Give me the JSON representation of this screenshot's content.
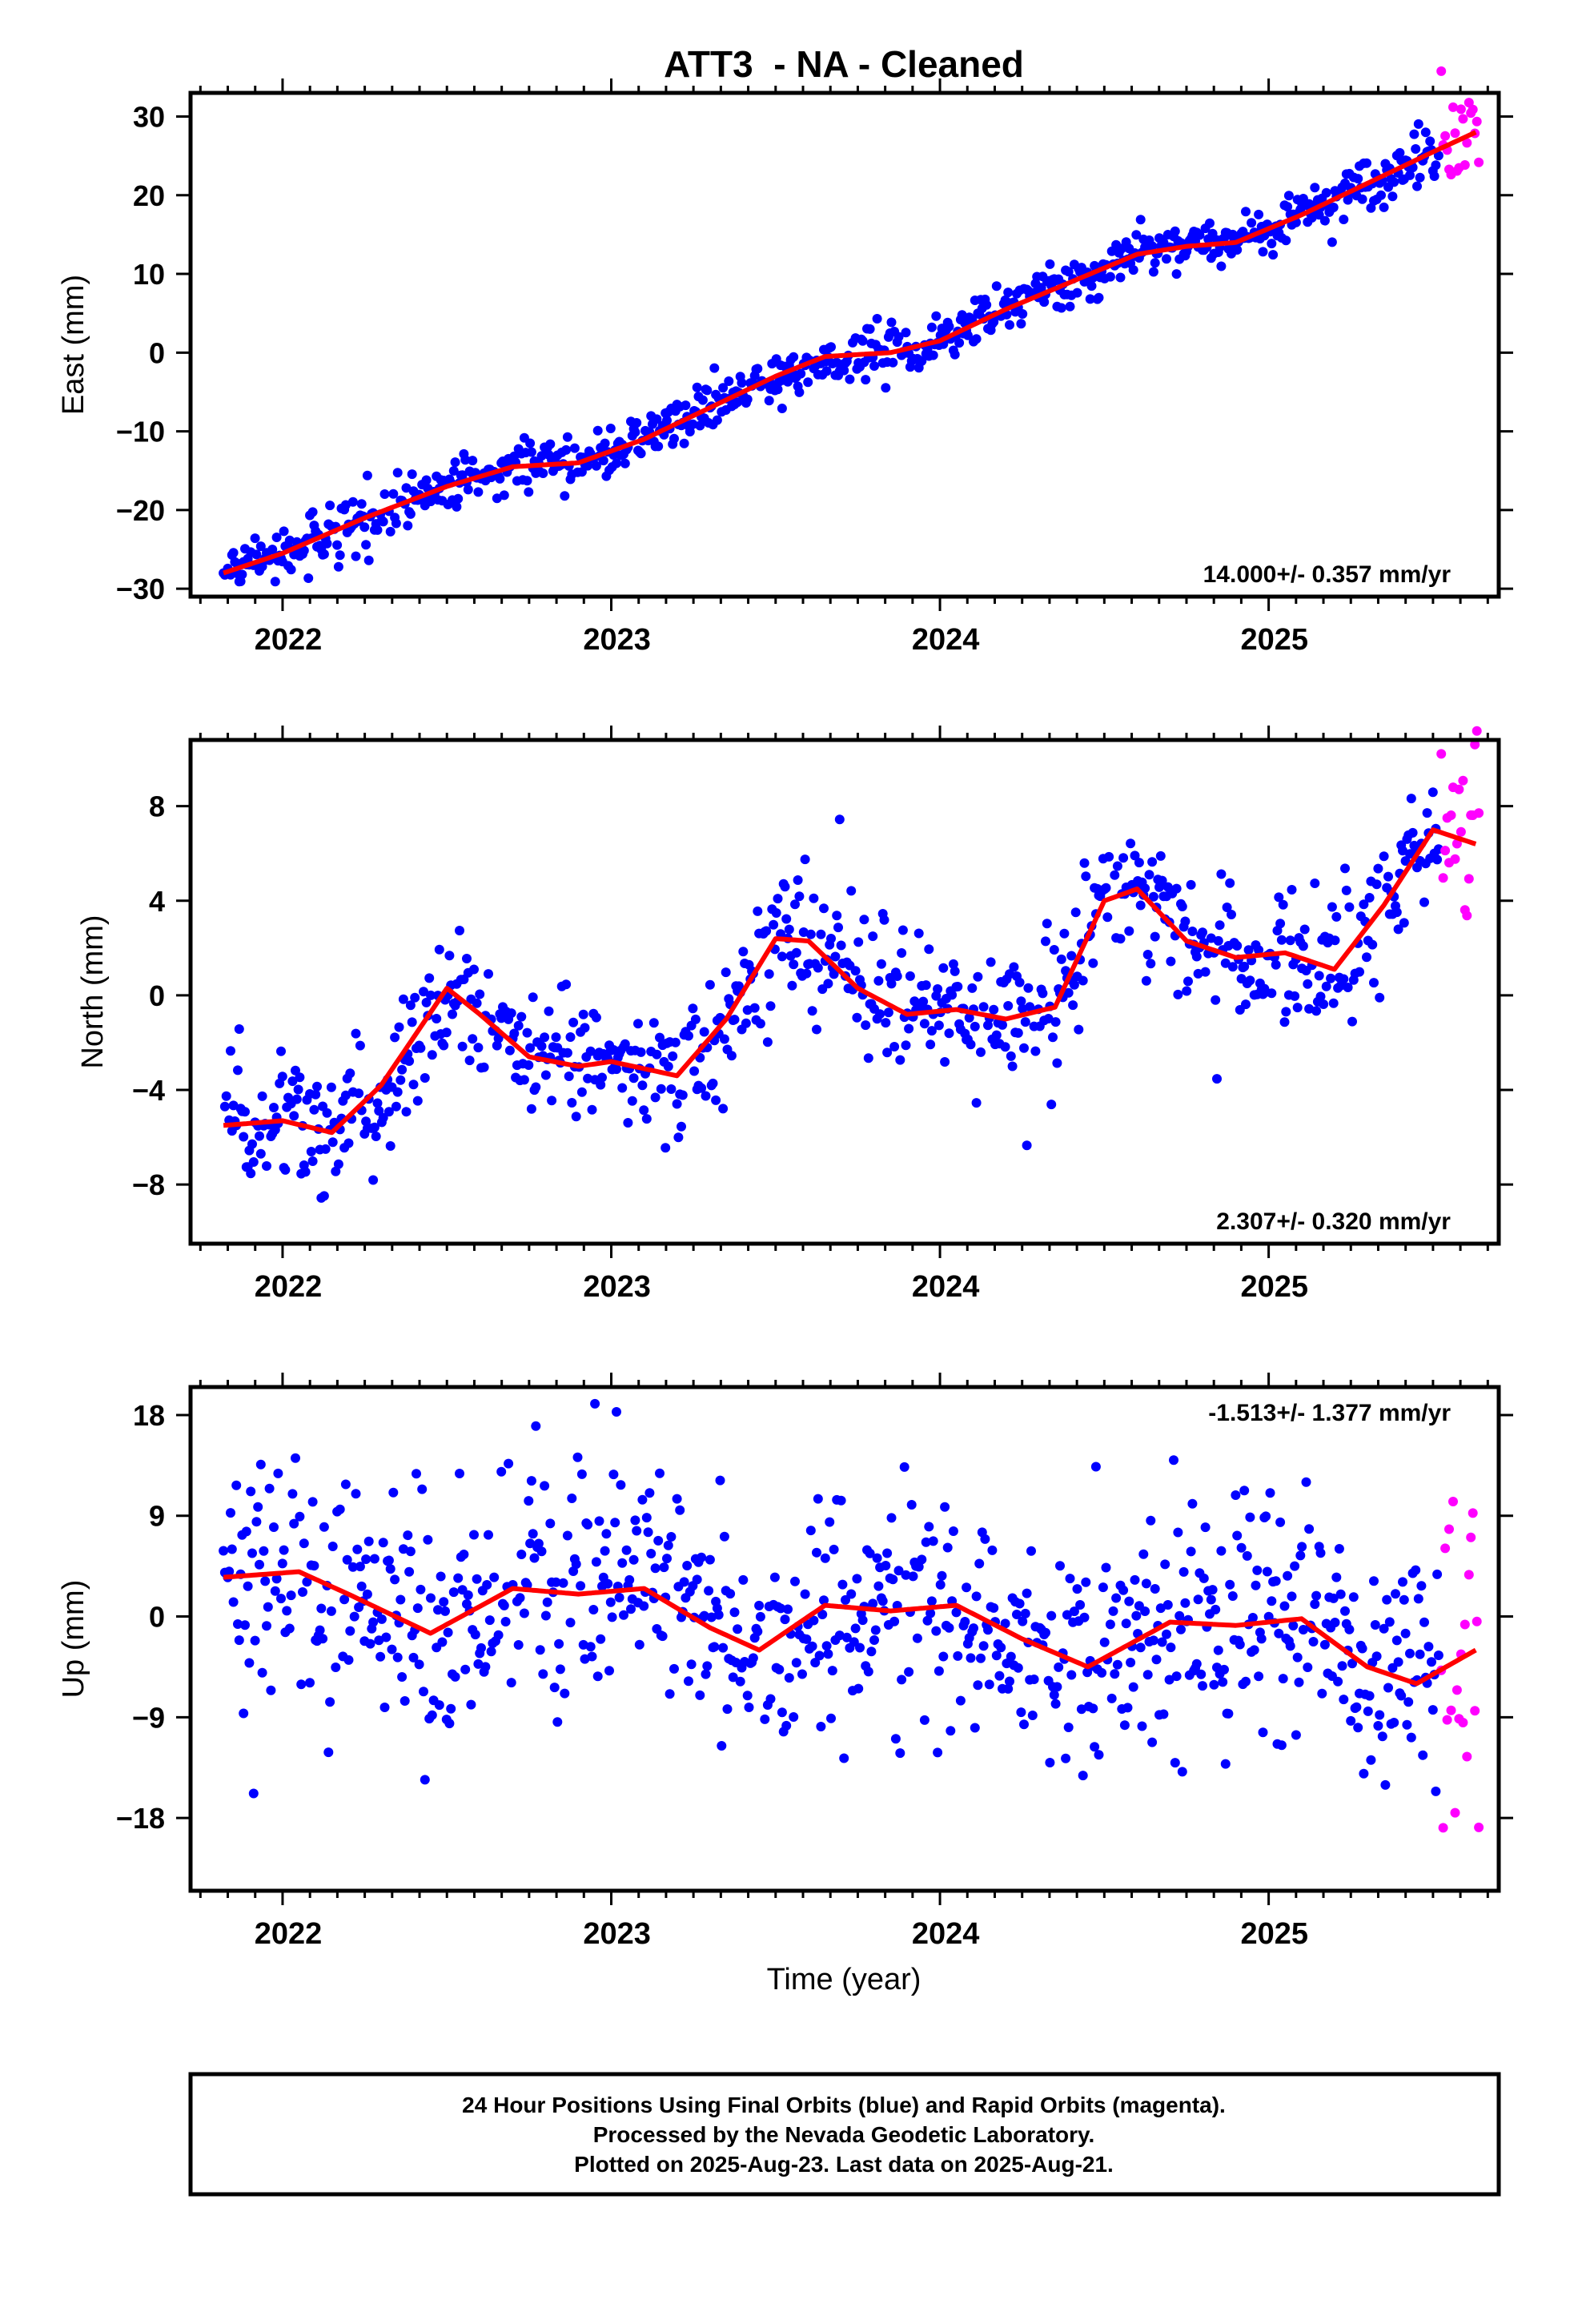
{
  "chart_data": [
    {
      "type": "scatter",
      "title": "ATT3  - NA - Cleaned",
      "ylabel": "East (mm)",
      "xlabel": "",
      "xlim": [
        2021.72,
        2025.7
      ],
      "ylim": [
        -31,
        33
      ],
      "yticks": [
        -30,
        -20,
        -10,
        0,
        10,
        20,
        30
      ],
      "xticks": [
        2022,
        2023,
        2024,
        2025
      ],
      "rate_label": "14.000+/- 0.357 mm/yr",
      "grid": false,
      "fit": {
        "x": [
          2021.82,
          2022.0,
          2022.25,
          2022.5,
          2022.7,
          2022.9,
          2023.1,
          2023.3,
          2023.5,
          2023.65,
          2023.85,
          2024.0,
          2024.2,
          2024.4,
          2024.6,
          2024.75,
          2024.9,
          2025.1,
          2025.3,
          2025.5,
          2025.63
        ],
        "y": [
          -28,
          -25.5,
          -21,
          -17,
          -14.5,
          -14,
          -11,
          -7,
          -3,
          -0.5,
          0,
          1.5,
          5.5,
          9,
          12.5,
          13.5,
          14,
          17.5,
          21.5,
          25.5,
          28
        ]
      },
      "series": [
        {
          "trend": {
            "x0": 2021.82,
            "y0": -28,
            "rate": 14.0
          },
          "x_end": 2025.52,
          "scatter": 1.6
        },
        {
          "trend": {
            "x0": 2025.52,
            "y0": 25.5,
            "rate": 14.0
          },
          "x_end": 2025.64,
          "scatter": 3.5
        }
      ]
    },
    {
      "type": "scatter",
      "title": "",
      "ylabel": "North (mm)",
      "xlabel": "",
      "xlim": [
        2021.72,
        2025.7
      ],
      "ylim": [
        -10.5,
        10.8
      ],
      "yticks": [
        -8,
        -4,
        0,
        4,
        8
      ],
      "xticks": [
        2022,
        2023,
        2024,
        2025
      ],
      "rate_label": "2.307+/- 0.320 mm/yr",
      "grid": false,
      "fit": {
        "x": [
          2021.82,
          2022.0,
          2022.15,
          2022.3,
          2022.5,
          2022.6,
          2022.75,
          2022.9,
          2023.0,
          2023.2,
          2023.35,
          2023.5,
          2023.6,
          2023.75,
          2023.9,
          2024.05,
          2024.2,
          2024.35,
          2024.5,
          2024.6,
          2024.75,
          2024.9,
          2025.05,
          2025.2,
          2025.35,
          2025.5,
          2025.63
        ],
        "y": [
          -5.5,
          -5.3,
          -5.8,
          -3.8,
          0.3,
          -0.8,
          -2.6,
          -3,
          -2.8,
          -3.4,
          -1,
          2.4,
          2.3,
          0.3,
          -0.8,
          -0.6,
          -1,
          -0.5,
          4,
          4.5,
          2.3,
          1.6,
          1.8,
          1.1,
          3.8,
          7,
          6.4
        ]
      },
      "series": [
        {
          "trend": {
            "x0": 2021.82,
            "y0": -5.5,
            "rate": 2.307
          },
          "x_end": 2025.52,
          "scatter": 1.4
        },
        {
          "trend": {
            "x0": 2025.52,
            "y0": 6.5,
            "rate": 2.307
          },
          "x_end": 2025.64,
          "scatter": 2.2
        }
      ]
    },
    {
      "type": "scatter",
      "title": "",
      "ylabel": "Up (mm)",
      "xlabel": "Time (year)",
      "xlim": [
        2021.72,
        2025.7
      ],
      "ylim": [
        -24.5,
        20.5
      ],
      "yticks": [
        -18,
        -9,
        0,
        9,
        18
      ],
      "xticks": [
        2022,
        2023,
        2024,
        2025
      ],
      "rate_label": "-1.513+/- 1.377 mm/yr",
      "grid": false,
      "fit": {
        "x": [
          2021.82,
          2022.05,
          2022.2,
          2022.45,
          2022.7,
          2022.9,
          2023.1,
          2023.3,
          2023.45,
          2023.65,
          2023.85,
          2024.05,
          2024.25,
          2024.45,
          2024.7,
          2024.9,
          2025.1,
          2025.3,
          2025.45,
          2025.63
        ],
        "y": [
          3.5,
          4,
          2,
          -1.5,
          2.5,
          2,
          2.5,
          -1,
          -3,
          1,
          0.5,
          1,
          -2,
          -4.5,
          -0.5,
          -0.8,
          -0.2,
          -4.5,
          -6,
          -3
        ]
      },
      "series": [
        {
          "trend": {
            "x0": 2021.82,
            "y0": 3.5,
            "rate": -1.513
          },
          "x_end": 2025.52,
          "scatter": 5.5
        },
        {
          "trend": {
            "x0": 2025.52,
            "y0": 2.0,
            "rate": -1.513
          },
          "x_end": 2025.64,
          "scatter": 8.0
        }
      ]
    }
  ],
  "colors": {
    "final_orbits": "#0000ff",
    "rapid_orbits": "#ff00ff",
    "fit_line": "#ff0000",
    "frame": "#000000"
  },
  "footer": {
    "line1": "24 Hour Positions Using Final Orbits (blue) and Rapid Orbits (magenta).",
    "line2": "Processed by the Nevada Geodetic Laboratory.",
    "line3": "Plotted on 2025-Aug-23. Last data on 2025-Aug-21."
  }
}
